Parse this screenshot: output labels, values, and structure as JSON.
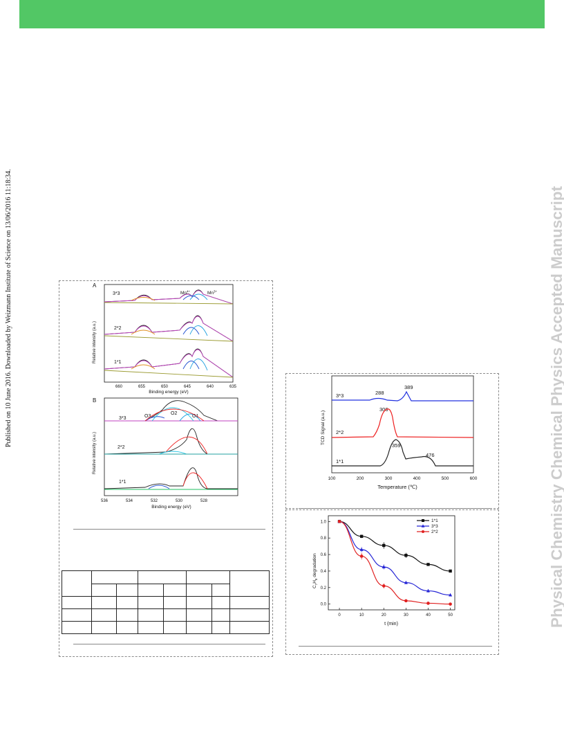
{
  "header": {
    "banner_color": "#52c765"
  },
  "watermark": {
    "journal": "Physical Chemistry Chemical Physics Accepted Manuscript"
  },
  "published_line": "Published on 10 June 2016. Downloaded by Weizmann Institute of Science on 13/06/2016 11:18:34.",
  "figures": {
    "xps_mn": {
      "panel": "A",
      "ylabel": "Relative intensity (a.u.)",
      "xlabel": "Binding energy (eV)",
      "ticks": [
        "660",
        "655",
        "650",
        "645",
        "640",
        "635"
      ],
      "samples": [
        "3*3",
        "2*2",
        "1*1"
      ],
      "peak_labels": [
        "Mn",
        "4+",
        "Mn",
        "3+"
      ]
    },
    "xps_o": {
      "panel": "B",
      "ylabel": "Relative intensity (a.u.)",
      "xlabel": "Binding energy (eV)",
      "ticks": [
        "536",
        "534",
        "532",
        "530",
        "528"
      ],
      "samples": [
        "3*3",
        "2*2",
        "1*1"
      ],
      "peak_labels": [
        "O3",
        "O2",
        "O1"
      ]
    },
    "tpr": {
      "ylabel": "TCD Signal (a.u.)",
      "xlabel": "Temperature (℃)",
      "ticks": [
        "100",
        "200",
        "300",
        "400",
        "500",
        "600"
      ],
      "samples": [
        "3*3",
        "2*2",
        "1*1"
      ],
      "colors": {
        "3*3": "#2030e0",
        "2*2": "#ee2020",
        "1*1": "#222222"
      },
      "peak_labels": [
        "288",
        "389",
        "306",
        "359",
        "476"
      ]
    },
    "degradation": {
      "ylabel_parts": [
        "C",
        "7",
        "H",
        "8",
        " degradation"
      ],
      "xlabel": "t (min)"
    }
  },
  "chart_data": {
    "type": "line",
    "xlabel": "t (min)",
    "ylabel": "C7H8 degradation",
    "x": [
      0,
      10,
      20,
      30,
      40,
      50
    ],
    "xlim": [
      -5,
      52
    ],
    "ylim": [
      -0.07,
      1.07
    ],
    "xticks": [
      "0",
      "10",
      "20",
      "30",
      "40",
      "50"
    ],
    "yticks": [
      "0.0",
      "0.2",
      "0.4",
      "0.6",
      "0.8",
      "1.0"
    ],
    "legend_position": "top-right",
    "series": [
      {
        "name": "1*1",
        "color": "#111111",
        "marker": "square",
        "values": [
          1.0,
          0.82,
          0.71,
          0.59,
          0.48,
          0.4
        ],
        "errors": [
          0,
          0.02,
          0.04,
          0.03,
          0.01,
          0.0
        ]
      },
      {
        "name": "3*3",
        "color": "#2626d6",
        "marker": "triangle",
        "values": [
          1.0,
          0.66,
          0.45,
          0.26,
          0.16,
          0.11
        ],
        "errors": [
          0,
          0.03,
          0.03,
          0.02,
          0.02,
          0.01
        ]
      },
      {
        "name": "2*2",
        "color": "#e02020",
        "marker": "circle",
        "values": [
          1.0,
          0.58,
          0.22,
          0.04,
          0.01,
          0.0
        ],
        "errors": [
          0,
          0.04,
          0.03,
          0.01,
          0.0,
          0.0
        ]
      }
    ]
  }
}
